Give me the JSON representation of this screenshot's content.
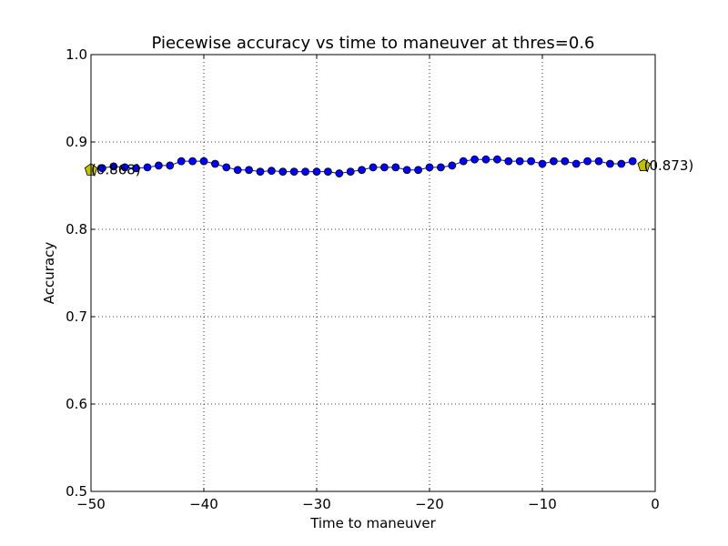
{
  "chart_data": {
    "type": "line",
    "title": "Piecewise accuracy vs time to maneuver at thres=0.6",
    "xlabel": "Time to maneuver",
    "ylabel": "Accuracy",
    "xlim": [
      -50,
      0
    ],
    "ylim": [
      0.5,
      1.0
    ],
    "xticks": [
      -50,
      -40,
      -30,
      -20,
      -10,
      0
    ],
    "xtick_labels": [
      "−50",
      "−40",
      "−30",
      "−20",
      "−10",
      "0"
    ],
    "yticks": [
      0.5,
      0.6,
      0.7,
      0.8,
      0.9,
      1.0
    ],
    "ytick_labels": [
      "0.5",
      "0.6",
      "0.7",
      "0.8",
      "0.9",
      "1.0"
    ],
    "grid": true,
    "series": [
      {
        "color": "#0000ff",
        "marker": "circle",
        "x": [
          -49,
          -48,
          -47,
          -46,
          -45,
          -44,
          -43,
          -42,
          -41,
          -40,
          -39,
          -38,
          -37,
          -36,
          -35,
          -34,
          -33,
          -32,
          -31,
          -30,
          -29,
          -28,
          -27,
          -26,
          -25,
          -24,
          -23,
          -22,
          -21,
          -20,
          -19,
          -18,
          -17,
          -16,
          -15,
          -14,
          -13,
          -12,
          -11,
          -10,
          -9,
          -8,
          -7,
          -6,
          -5,
          -4,
          -3,
          -2
        ],
        "y": [
          0.87,
          0.872,
          0.871,
          0.87,
          0.871,
          0.873,
          0.873,
          0.878,
          0.878,
          0.878,
          0.875,
          0.871,
          0.868,
          0.868,
          0.866,
          0.867,
          0.866,
          0.866,
          0.866,
          0.866,
          0.866,
          0.864,
          0.866,
          0.868,
          0.871,
          0.871,
          0.871,
          0.868,
          0.868,
          0.871,
          0.871,
          0.873,
          0.878,
          0.88,
          0.88,
          0.88,
          0.878,
          0.878,
          0.878,
          0.875,
          0.878,
          0.878,
          0.875,
          0.878,
          0.878,
          0.875,
          0.875,
          0.878
        ]
      }
    ],
    "endpoints": [
      {
        "x": -50,
        "y": 0.868,
        "color": "#bfbf00",
        "marker": "pentagon",
        "label": "(0.868)"
      },
      {
        "x": -1,
        "y": 0.873,
        "color": "#bfbf00",
        "marker": "pentagon",
        "label": "(0.873)"
      }
    ]
  }
}
